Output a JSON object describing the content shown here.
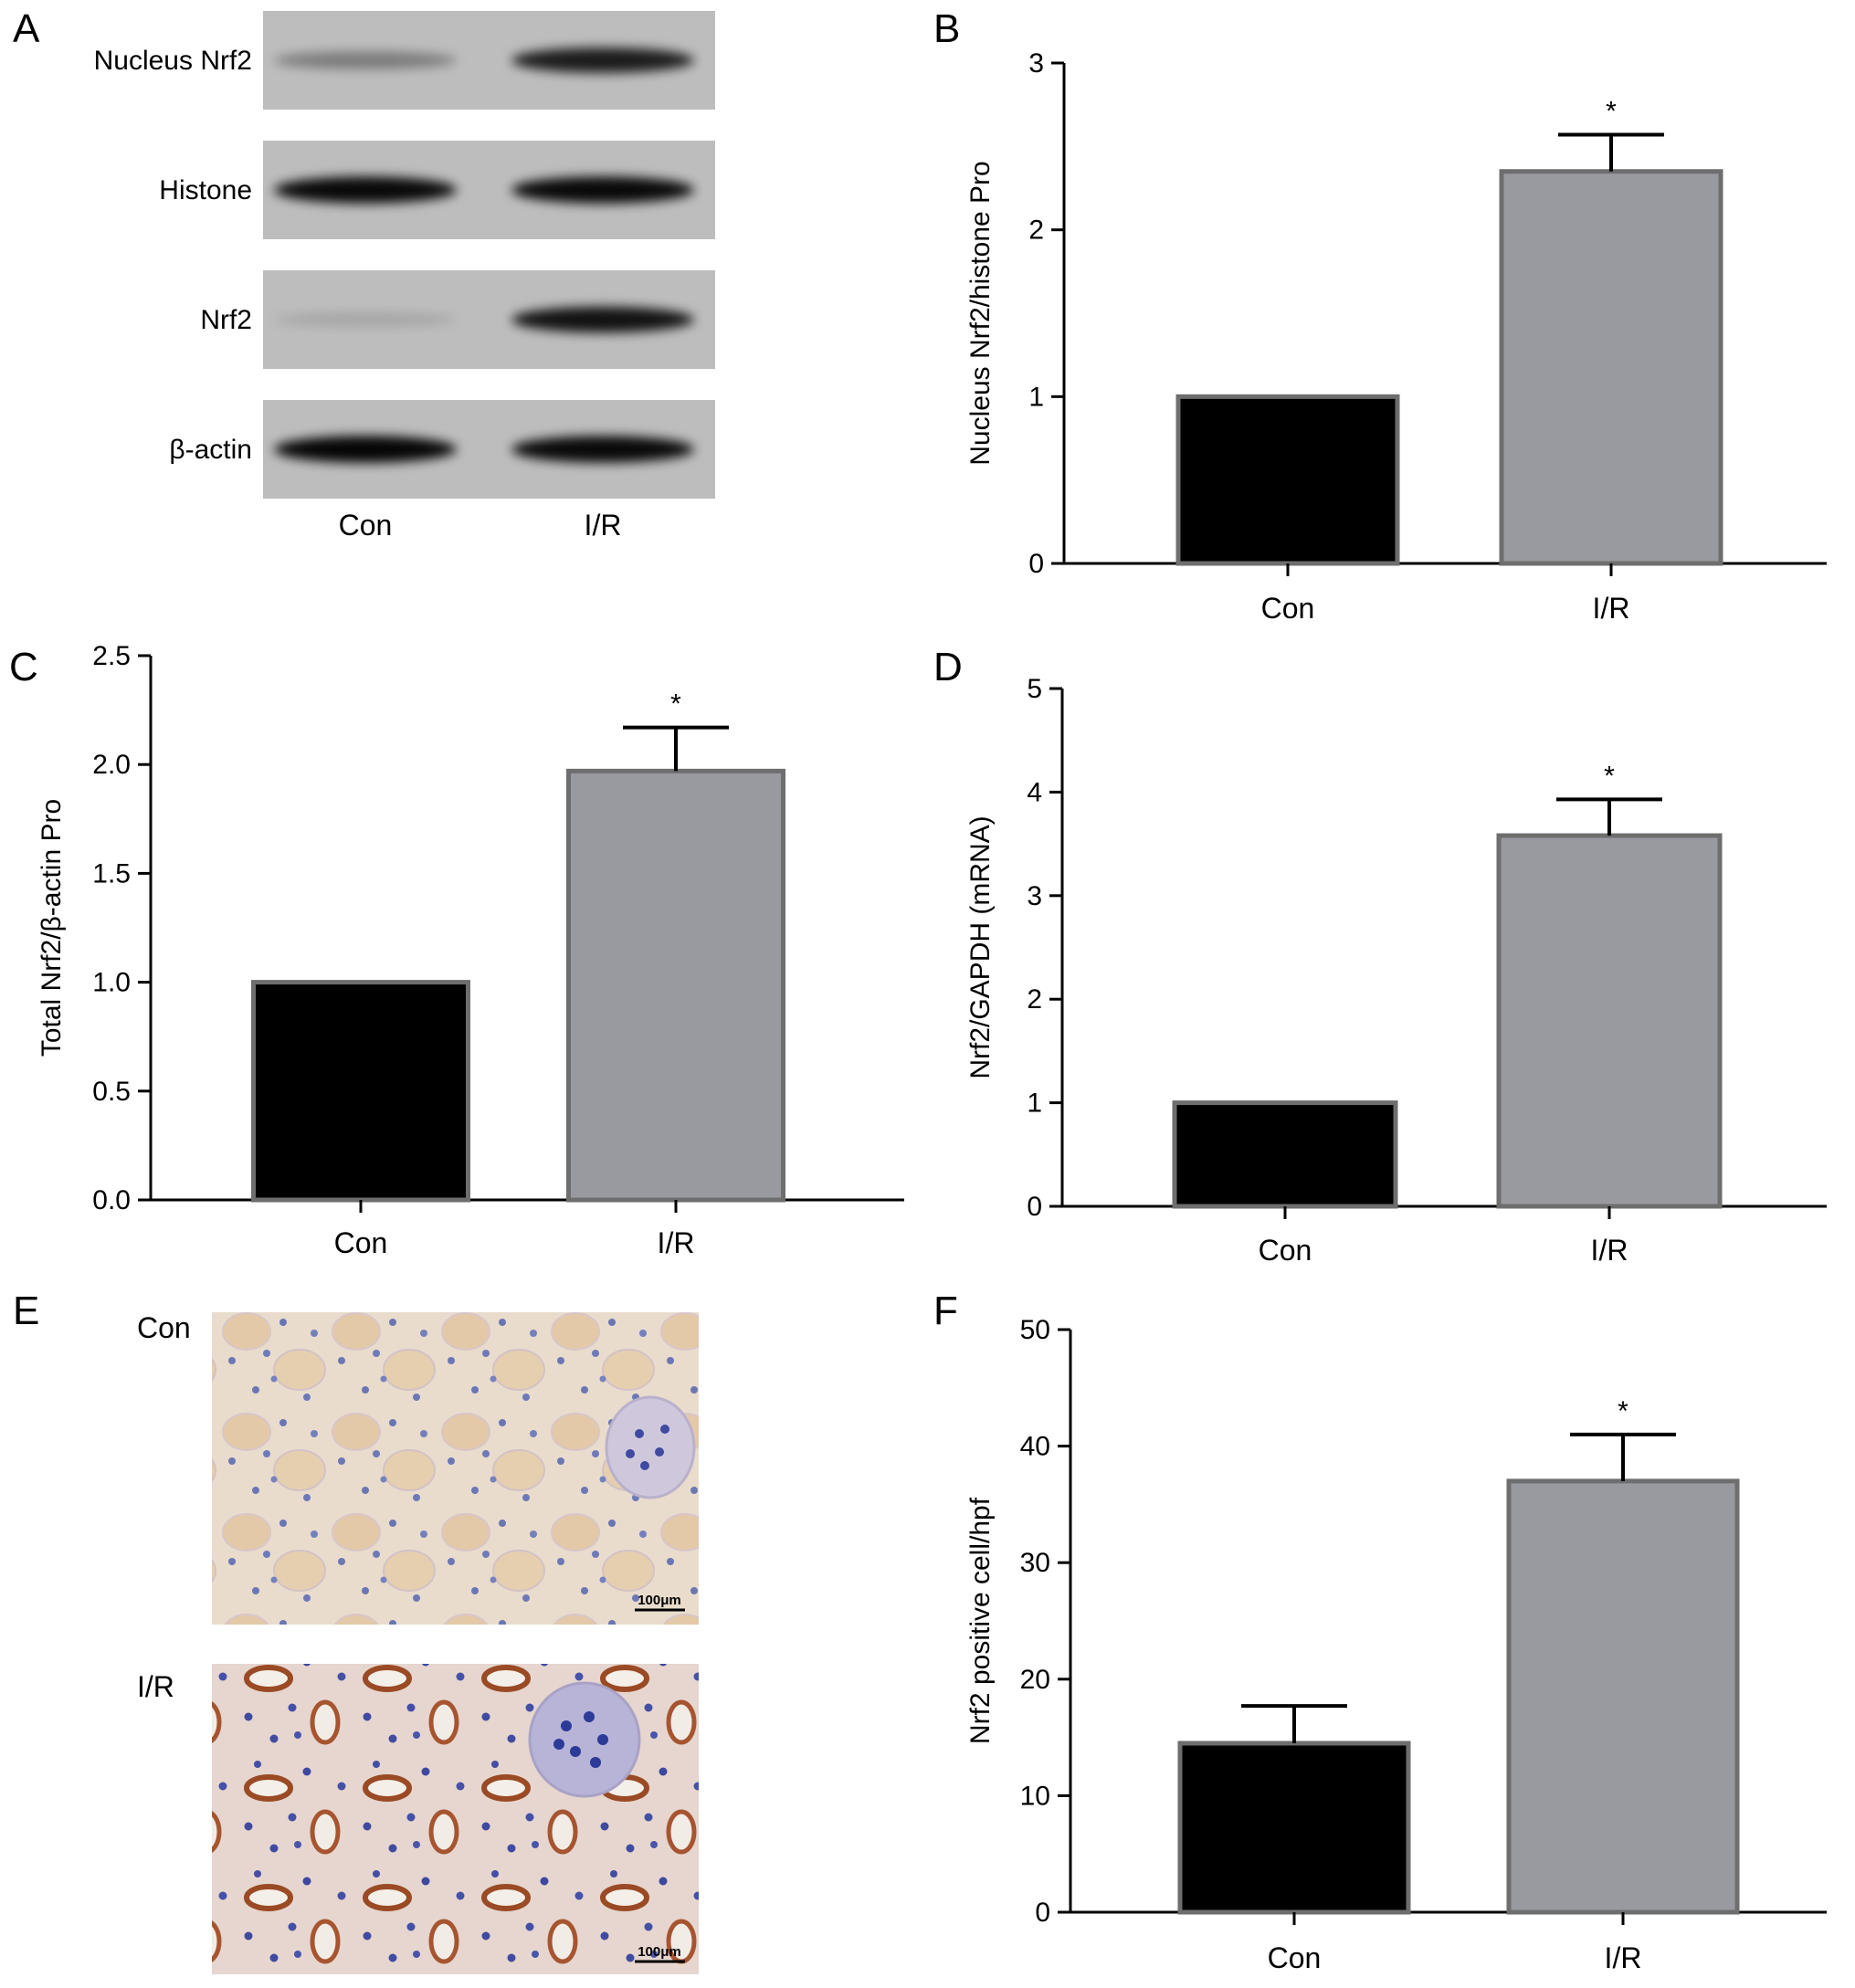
{
  "panels": {
    "A": {
      "letter": "A",
      "blot_rows": [
        "Nucleus Nrf2",
        "Histone",
        "Nrf2",
        "β-actin"
      ],
      "lanes": [
        "Con",
        "I/R"
      ],
      "band_intensity": [
        [
          0.35,
          0.85
        ],
        [
          0.95,
          0.95
        ],
        [
          0.12,
          0.9
        ],
        [
          0.97,
          0.95
        ]
      ]
    },
    "E": {
      "letter": "E",
      "images": [
        {
          "label": "Con",
          "scale_bar": "100μm"
        },
        {
          "label": "I/R",
          "scale_bar": "100μm"
        }
      ]
    }
  },
  "chart_data": [
    {
      "id": "B",
      "letter": "B",
      "type": "bar",
      "categories": [
        "Con",
        "I/R"
      ],
      "values": [
        1.0,
        2.35
      ],
      "errors": [
        0,
        0.22
      ],
      "significance": [
        "",
        "*"
      ],
      "ylabel": "Nucleus Nrf2/histone Pro",
      "ylim": [
        0,
        3
      ],
      "ticks": [
        0,
        1,
        2,
        3
      ],
      "tick_labels": [
        "0",
        "1",
        "2",
        "3"
      ],
      "colors": [
        "#000000",
        "#999aa0"
      ]
    },
    {
      "id": "C",
      "letter": "C",
      "type": "bar",
      "categories": [
        "Con",
        "I/R"
      ],
      "values": [
        1.0,
        1.97
      ],
      "errors": [
        0,
        0.2
      ],
      "significance": [
        "",
        "*"
      ],
      "ylabel": "Total Nrf2/β-actin Pro",
      "ylim": [
        0,
        2.5
      ],
      "ticks": [
        0,
        0.5,
        1.0,
        1.5,
        2.0,
        2.5
      ],
      "tick_labels": [
        "0.0",
        "0.5",
        "1.0",
        "1.5",
        "2.0",
        "2.5"
      ],
      "colors": [
        "#000000",
        "#999aa0"
      ]
    },
    {
      "id": "D",
      "letter": "D",
      "type": "bar",
      "categories": [
        "Con",
        "I/R"
      ],
      "values": [
        1.0,
        3.58
      ],
      "errors": [
        0,
        0.35
      ],
      "significance": [
        "",
        "*"
      ],
      "ylabel": "Nrf2/GAPDH (mRNA)",
      "ylim": [
        0,
        5
      ],
      "ticks": [
        0,
        1,
        2,
        3,
        4,
        5
      ],
      "tick_labels": [
        "0",
        "1",
        "2",
        "3",
        "4",
        "5"
      ],
      "colors": [
        "#000000",
        "#999aa0"
      ]
    },
    {
      "id": "F",
      "letter": "F",
      "type": "bar",
      "categories": [
        "Con",
        "I/R"
      ],
      "values": [
        14.5,
        37.0
      ],
      "errors": [
        3.2,
        4.0
      ],
      "significance": [
        "",
        "*"
      ],
      "ylabel": "Nrf2 positive cell/hpf",
      "ylim": [
        0,
        50
      ],
      "ticks": [
        0,
        10,
        20,
        30,
        40,
        50
      ],
      "tick_labels": [
        "0",
        "10",
        "20",
        "30",
        "40",
        "50"
      ],
      "colors": [
        "#000000",
        "#999aa0"
      ]
    }
  ]
}
